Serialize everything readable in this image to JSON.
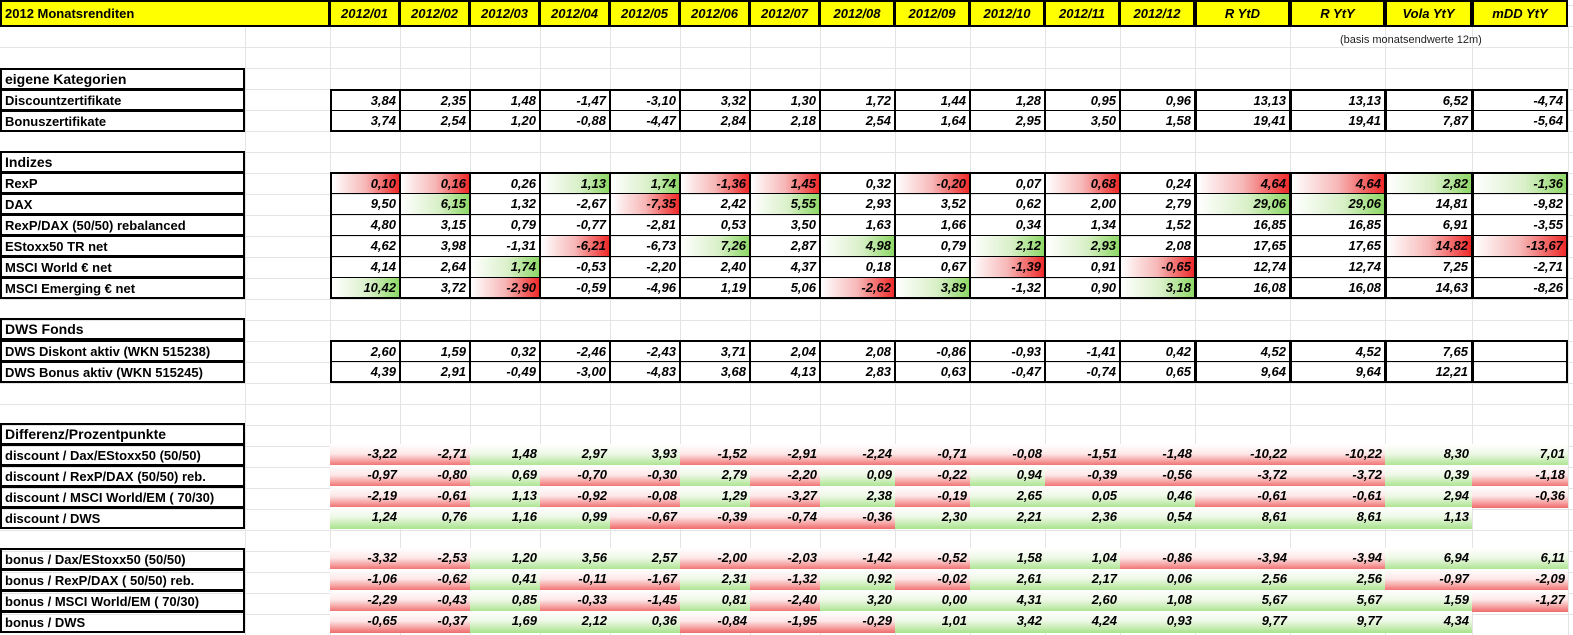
{
  "title": "2012 Monatsrenditen",
  "columns": [
    "2012/01",
    "2012/02",
    "2012/03",
    "2012/04",
    "2012/05",
    "2012/06",
    "2012/07",
    "2012/08",
    "2012/09",
    "2012/10",
    "2012/11",
    "2012/12",
    "R YtD",
    "R YtY",
    "Vola YtY",
    "mDD YtY"
  ],
  "note": "(basis monatsendwerte 12m)",
  "colors": {
    "header_yellow": "#ffff00",
    "positive_green": "#8ed868",
    "negative_red": "#ef2a2a"
  },
  "sections": [
    {
      "title": "eigene Kategorien",
      "rows": [
        {
          "label": "Discountzertifikate",
          "values": [
            "3,84",
            "2,35",
            "1,48",
            "-1,47",
            "-3,10",
            "3,32",
            "1,30",
            "1,72",
            "1,44",
            "1,28",
            "0,95",
            "0,96",
            "13,13",
            "13,13",
            "6,52",
            "-4,74"
          ]
        },
        {
          "label": "Bonuszertifikate",
          "values": [
            "3,74",
            "2,54",
            "1,20",
            "-0,88",
            "-4,47",
            "2,84",
            "2,18",
            "2,54",
            "1,64",
            "2,95",
            "3,50",
            "1,58",
            "19,41",
            "19,41",
            "7,87",
            "-5,64"
          ]
        }
      ]
    },
    {
      "title": "Indizes",
      "rows": [
        {
          "label": "RexP",
          "values": [
            "0,10",
            "0,16",
            "0,26",
            "1,13",
            "1,74",
            "-1,36",
            "1,45",
            "0,32",
            "-0,20",
            "0,07",
            "0,68",
            "0,24",
            "4,64",
            "4,64",
            "2,82",
            "-1,36"
          ]
        },
        {
          "label": "DAX",
          "values": [
            "9,50",
            "6,15",
            "1,32",
            "-2,67",
            "-7,35",
            "2,42",
            "5,55",
            "2,93",
            "3,52",
            "0,62",
            "2,00",
            "2,79",
            "29,06",
            "29,06",
            "14,81",
            "-9,82"
          ]
        },
        {
          "label": "RexP/DAX (50/50) rebalanced",
          "values": [
            "4,80",
            "3,15",
            "0,79",
            "-0,77",
            "-2,81",
            "0,53",
            "3,50",
            "1,63",
            "1,66",
            "0,34",
            "1,34",
            "1,52",
            "16,85",
            "16,85",
            "6,91",
            "-3,55"
          ]
        },
        {
          "label": "EStoxx50 TR net",
          "values": [
            "4,62",
            "3,98",
            "-1,31",
            "-6,21",
            "-6,73",
            "7,26",
            "2,87",
            "4,98",
            "0,79",
            "2,12",
            "2,93",
            "2,08",
            "17,65",
            "17,65",
            "14,82",
            "-13,67"
          ]
        },
        {
          "label": "MSCI World € net",
          "values": [
            "4,14",
            "2,64",
            "1,74",
            "-0,53",
            "-2,20",
            "2,40",
            "4,37",
            "0,18",
            "0,67",
            "-1,39",
            "0,91",
            "-0,65",
            "12,74",
            "12,74",
            "7,25",
            "-2,71"
          ]
        },
        {
          "label": "MSCI Emerging € net",
          "values": [
            "10,42",
            "3,72",
            "-2,90",
            "-0,59",
            "-4,96",
            "1,19",
            "5,06",
            "-2,62",
            "3,89",
            "-1,32",
            "0,90",
            "3,18",
            "16,08",
            "16,08",
            "14,63",
            "-8,26"
          ]
        }
      ]
    },
    {
      "title": "DWS Fonds",
      "rows": [
        {
          "label": "DWS Diskont aktiv (WKN 515238)",
          "values": [
            "2,60",
            "1,59",
            "0,32",
            "-2,46",
            "-2,43",
            "3,71",
            "2,04",
            "2,08",
            "-0,86",
            "-0,93",
            "-1,41",
            "0,42",
            "4,52",
            "4,52",
            "7,65",
            ""
          ]
        },
        {
          "label": "DWS Bonus aktiv (WKN 515245)",
          "values": [
            "4,39",
            "2,91",
            "-0,49",
            "-3,00",
            "-4,83",
            "3,68",
            "4,13",
            "2,83",
            "0,63",
            "-0,47",
            "-0,74",
            "0,65",
            "9,64",
            "9,64",
            "12,21",
            ""
          ]
        }
      ]
    },
    {
      "title": "Differenz/Prozentpunkte",
      "rows": [
        {
          "label": "discount / Dax/EStoxx50 (50/50)",
          "values": [
            "-3,22",
            "-2,71",
            "1,48",
            "2,97",
            "3,93",
            "-1,52",
            "-2,91",
            "-2,24",
            "-0,71",
            "-0,08",
            "-1,51",
            "-1,48",
            "-10,22",
            "-10,22",
            "8,30",
            "7,01"
          ]
        },
        {
          "label": "discount / RexP/DAX (50/50) reb.",
          "values": [
            "-0,97",
            "-0,80",
            "0,69",
            "-0,70",
            "-0,30",
            "2,79",
            "-2,20",
            "0,09",
            "-0,22",
            "0,94",
            "-0,39",
            "-0,56",
            "-3,72",
            "-3,72",
            "0,39",
            "-1,18"
          ]
        },
        {
          "label": "discount / MSCI World/EM ( 70/30)",
          "values": [
            "-2,19",
            "-0,61",
            "1,13",
            "-0,92",
            "-0,08",
            "1,29",
            "-3,27",
            "2,38",
            "-0,19",
            "2,65",
            "0,05",
            "0,46",
            "-0,61",
            "-0,61",
            "2,94",
            "-0,36"
          ]
        },
        {
          "label": "discount / DWS",
          "values": [
            "1,24",
            "0,76",
            "1,16",
            "0,99",
            "-0,67",
            "-0,39",
            "-0,74",
            "-0,36",
            "2,30",
            "2,21",
            "2,36",
            "0,54",
            "8,61",
            "8,61",
            "1,13",
            ""
          ]
        }
      ]
    },
    {
      "title": "",
      "rows": [
        {
          "label": "bonus / Dax/EStoxx50 (50/50)",
          "values": [
            "-3,32",
            "-2,53",
            "1,20",
            "3,56",
            "2,57",
            "-2,00",
            "-2,03",
            "-1,42",
            "-0,52",
            "1,58",
            "1,04",
            "-0,86",
            "-3,94",
            "-3,94",
            "6,94",
            "6,11"
          ]
        },
        {
          "label": "bonus / RexP/DAX ( 50/50) reb.",
          "values": [
            "-1,06",
            "-0,62",
            "0,41",
            "-0,11",
            "-1,67",
            "2,31",
            "-1,32",
            "0,92",
            "-0,02",
            "2,61",
            "2,17",
            "0,06",
            "2,56",
            "2,56",
            "-0,97",
            "-2,09"
          ]
        },
        {
          "label": "bonus / MSCI World/EM ( 70/30)",
          "values": [
            "-2,29",
            "-0,43",
            "0,85",
            "-0,33",
            "-1,45",
            "0,81",
            "-2,40",
            "3,20",
            "0,00",
            "4,31",
            "2,60",
            "1,08",
            "5,67",
            "5,67",
            "1,59",
            "-1,27"
          ]
        },
        {
          "label": "bonus / DWS",
          "values": [
            "-0,65",
            "-0,37",
            "1,69",
            "2,12",
            "0,36",
            "-0,84",
            "-1,95",
            "-0,29",
            "1,01",
            "3,42",
            "4,24",
            "0,93",
            "9,77",
            "9,77",
            "4,34",
            ""
          ]
        }
      ]
    }
  ]
}
